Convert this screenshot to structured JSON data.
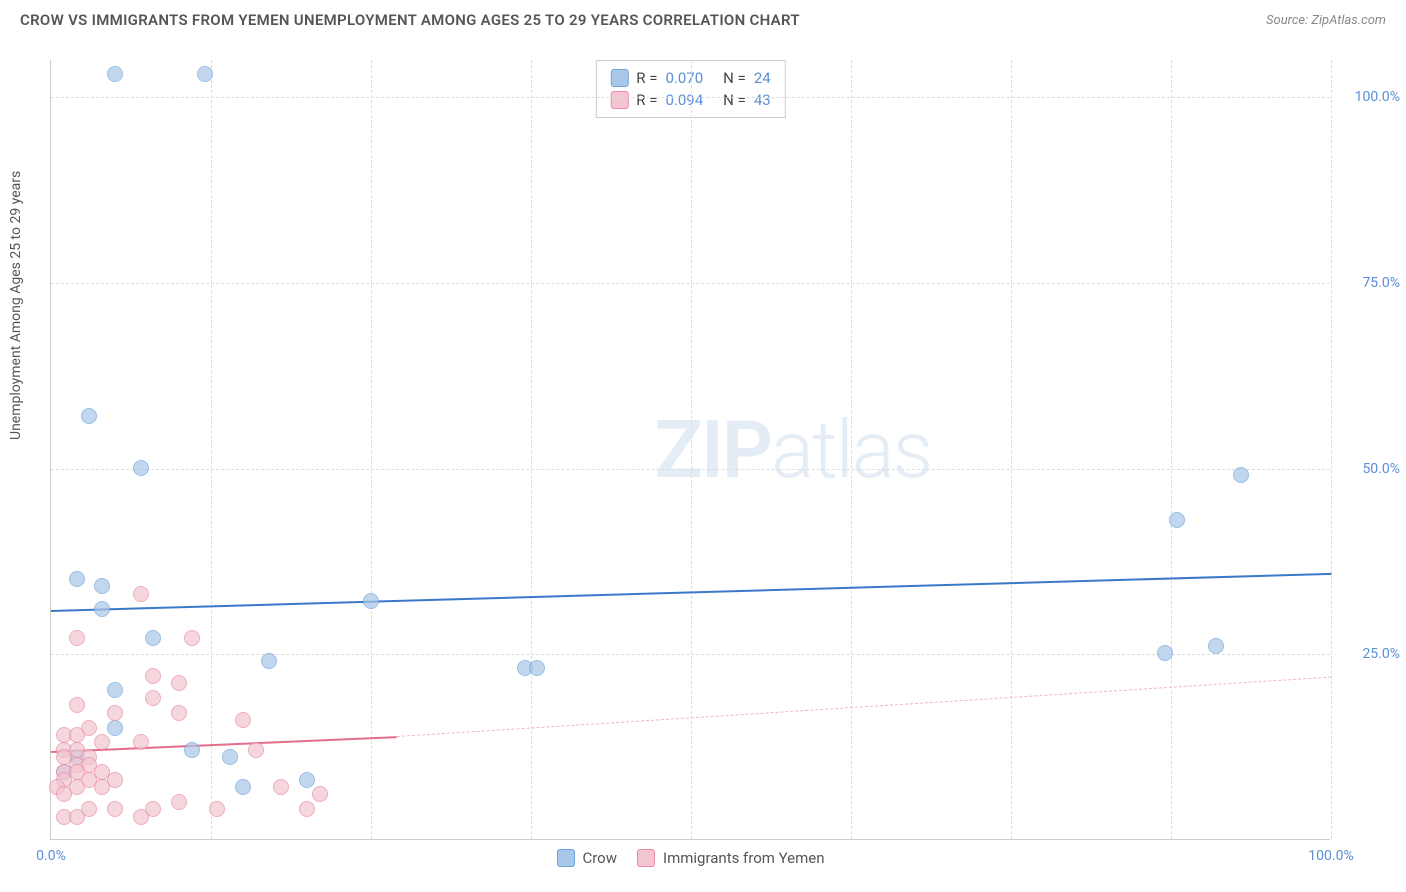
{
  "header": {
    "title": "CROW VS IMMIGRANTS FROM YEMEN UNEMPLOYMENT AMONG AGES 25 TO 29 YEARS CORRELATION CHART",
    "source": "Source: ZipAtlas.com"
  },
  "watermark": {
    "zip": "ZIP",
    "atlas": "atlas"
  },
  "chart": {
    "type": "scatter",
    "ylabel": "Unemployment Among Ages 25 to 29 years",
    "xlim": [
      0,
      100
    ],
    "ylim": [
      0,
      105
    ],
    "xticks": [
      {
        "v": 0,
        "l": "0.0%"
      },
      {
        "v": 100,
        "l": "100.0%"
      }
    ],
    "yticks": [
      {
        "v": 25,
        "l": "25.0%"
      },
      {
        "v": 50,
        "l": "50.0%"
      },
      {
        "v": 75,
        "l": "75.0%"
      },
      {
        "v": 100,
        "l": "100.0%"
      }
    ],
    "x_gridlines": [
      12.5,
      25,
      37.5,
      50,
      62.5,
      75,
      87.5,
      100
    ],
    "y_gridlines": [
      25,
      50,
      75,
      100
    ],
    "background_color": "#ffffff",
    "grid_color": "#dddddd",
    "axis_color": "#cccccc",
    "tick_color": "#5b8fd6",
    "label_color": "#555555",
    "title_fontsize": 15,
    "label_fontsize": 14,
    "tick_fontsize": 14,
    "marker_radius": 8,
    "marker_stroke_width": 1.5,
    "marker_fill_opacity": 0.35,
    "series": [
      {
        "name": "Crow",
        "label": "Crow",
        "color_fill": "#a9c7e8",
        "color_stroke": "#6fa3dc",
        "R": "0.070",
        "N": "24",
        "trend": {
          "x0": 0,
          "y0": 31,
          "x1": 100,
          "y1": 36,
          "width": 2.2,
          "style": "solid",
          "color": "#3b78c9"
        },
        "points": [
          {
            "x": 5,
            "y": 103
          },
          {
            "x": 12,
            "y": 103
          },
          {
            "x": 3,
            "y": 57
          },
          {
            "x": 7,
            "y": 50
          },
          {
            "x": 93,
            "y": 49
          },
          {
            "x": 88,
            "y": 43
          },
          {
            "x": 2,
            "y": 35
          },
          {
            "x": 4,
            "y": 34
          },
          {
            "x": 4,
            "y": 31
          },
          {
            "x": 25,
            "y": 32
          },
          {
            "x": 8,
            "y": 27
          },
          {
            "x": 17,
            "y": 24
          },
          {
            "x": 37,
            "y": 23
          },
          {
            "x": 38,
            "y": 23
          },
          {
            "x": 87,
            "y": 25
          },
          {
            "x": 91,
            "y": 26
          },
          {
            "x": 5,
            "y": 20
          },
          {
            "x": 5,
            "y": 15
          },
          {
            "x": 2,
            "y": 11
          },
          {
            "x": 11,
            "y": 12
          },
          {
            "x": 15,
            "y": 7
          },
          {
            "x": 14,
            "y": 11
          },
          {
            "x": 20,
            "y": 8
          },
          {
            "x": 1,
            "y": 9
          }
        ]
      },
      {
        "name": "Immigrants from Yemen",
        "label": "Immigrants from Yemen",
        "color_fill": "#f3c5d0",
        "color_stroke": "#e88ba4",
        "R": "0.094",
        "N": "43",
        "trend": {
          "x0": 0,
          "y0": 12,
          "x1": 27,
          "y1": 14,
          "width": 2,
          "style": "solid",
          "color": "#e56d8c"
        },
        "trend_ext": {
          "x0": 27,
          "y0": 14,
          "x1": 100,
          "y1": 22,
          "width": 1,
          "style": "dashed",
          "color": "#f0b5c4"
        },
        "points": [
          {
            "x": 7,
            "y": 33
          },
          {
            "x": 2,
            "y": 27
          },
          {
            "x": 11,
            "y": 27
          },
          {
            "x": 8,
            "y": 22
          },
          {
            "x": 10,
            "y": 21
          },
          {
            "x": 8,
            "y": 19
          },
          {
            "x": 2,
            "y": 18
          },
          {
            "x": 5,
            "y": 17
          },
          {
            "x": 10,
            "y": 17
          },
          {
            "x": 15,
            "y": 16
          },
          {
            "x": 3,
            "y": 15
          },
          {
            "x": 1,
            "y": 14
          },
          {
            "x": 2,
            "y": 14
          },
          {
            "x": 4,
            "y": 13
          },
          {
            "x": 7,
            "y": 13
          },
          {
            "x": 1,
            "y": 12
          },
          {
            "x": 2,
            "y": 12
          },
          {
            "x": 3,
            "y": 11
          },
          {
            "x": 1,
            "y": 11
          },
          {
            "x": 2,
            "y": 10
          },
          {
            "x": 3,
            "y": 10
          },
          {
            "x": 1,
            "y": 9
          },
          {
            "x": 4,
            "y": 9
          },
          {
            "x": 2,
            "y": 9
          },
          {
            "x": 1,
            "y": 8
          },
          {
            "x": 3,
            "y": 8
          },
          {
            "x": 5,
            "y": 8
          },
          {
            "x": 2,
            "y": 7
          },
          {
            "x": 0.5,
            "y": 7
          },
          {
            "x": 4,
            "y": 7
          },
          {
            "x": 1,
            "y": 6
          },
          {
            "x": 18,
            "y": 7
          },
          {
            "x": 21,
            "y": 6
          },
          {
            "x": 10,
            "y": 5
          },
          {
            "x": 13,
            "y": 4
          },
          {
            "x": 20,
            "y": 4
          },
          {
            "x": 5,
            "y": 4
          },
          {
            "x": 8,
            "y": 4
          },
          {
            "x": 3,
            "y": 4
          },
          {
            "x": 1,
            "y": 3
          },
          {
            "x": 2,
            "y": 3
          },
          {
            "x": 7,
            "y": 3
          },
          {
            "x": 16,
            "y": 12
          }
        ]
      }
    ],
    "legend_top": [
      {
        "swatch_fill": "#a9c7e8",
        "swatch_stroke": "#6fa3dc",
        "r_lbl": "R =",
        "r_val": "0.070",
        "n_lbl": "N =",
        "n_val": "24"
      },
      {
        "swatch_fill": "#f3c5d0",
        "swatch_stroke": "#e88ba4",
        "r_lbl": "R =",
        "r_val": "0.094",
        "n_lbl": "N =",
        "n_val": "43"
      }
    ],
    "legend_bottom": [
      {
        "swatch_fill": "#a9c7e8",
        "swatch_stroke": "#6fa3dc",
        "label": "Crow"
      },
      {
        "swatch_fill": "#f3c5d0",
        "swatch_stroke": "#e88ba4",
        "label": "Immigrants from Yemen"
      }
    ]
  }
}
